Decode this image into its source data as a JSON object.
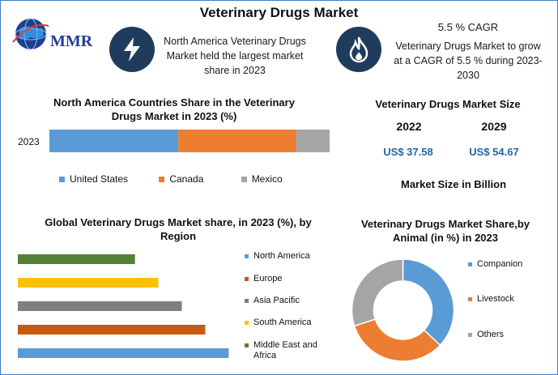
{
  "title": "Veterinary Drugs Market",
  "logo": {
    "text": "MMR",
    "icon": "globe-icon"
  },
  "info1": {
    "icon": "lightning-icon",
    "lines": [
      "North America Veterinary Drugs",
      "Market held the largest market",
      "share in 2023"
    ]
  },
  "info2": {
    "icon": "flame-icon",
    "heading": "5.5 % CAGR",
    "lines": [
      "Veterinary Drugs Market to grow",
      "at a CAGR of 5.5 % during 2023-",
      "2030"
    ]
  },
  "size_panel": {
    "title": "Veterinary Drugs Market Size",
    "year1": "2022",
    "year2": "2029",
    "value1": "US$ 37.58",
    "value2": "US$ 54.67",
    "unit_note": "Market Size in Billion"
  },
  "colors": {
    "us": "#5b9bd5",
    "canada": "#ed7d31",
    "mexico": "#a5a5a5",
    "north_america": "#5b9bd5",
    "europe": "#c55a11",
    "asia_pacific": "#7f7f7f",
    "south_america": "#ffc000",
    "mea": "#548235",
    "navy": "#1f3c5c"
  },
  "chart_data": [
    {
      "type": "bar",
      "orientation": "horizontal-stacked",
      "title_lines": [
        "North America Countries Share in the Veterinary",
        "Drugs  Market in 2023 (%)"
      ],
      "categories": [
        "2023"
      ],
      "series": [
        {
          "name": "United States",
          "values": [
            46
          ]
        },
        {
          "name": "Canada",
          "values": [
            42
          ]
        },
        {
          "name": "Mexico",
          "values": [
            12
          ]
        }
      ],
      "legend": "bottom"
    },
    {
      "type": "bar",
      "orientation": "horizontal",
      "title_lines": [
        "Global Veterinary Drugs Market share, in 2023 (%), by",
        "Region"
      ],
      "categories": [
        "Middle East and Africa",
        "South America",
        "Asia Pacific",
        "Europe",
        "North America"
      ],
      "values": [
        15,
        18,
        21,
        24,
        27
      ],
      "legend_labels": [
        "North America",
        "Europe",
        "Asia Pacific",
        "South America",
        "Middle East and",
        "Africa"
      ],
      "legend": "right"
    },
    {
      "type": "pie",
      "variant": "donut",
      "title_lines": [
        "Veterinary Drugs Market Share,by",
        "Animal (in %) in 2023"
      ],
      "categories": [
        "Companion",
        "Livestock",
        "Others"
      ],
      "values": [
        37,
        33,
        30
      ],
      "legend": "right"
    }
  ]
}
